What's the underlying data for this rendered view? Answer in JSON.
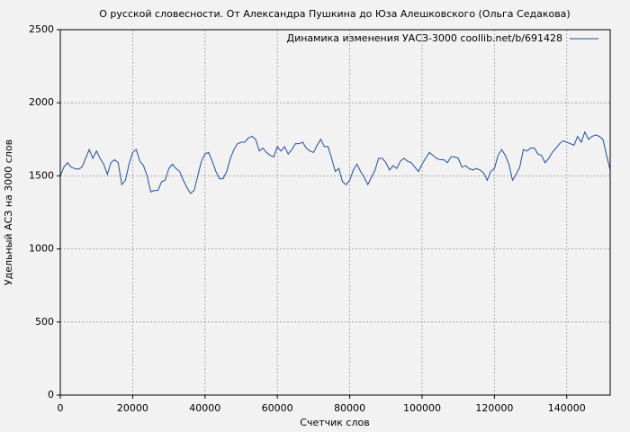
{
  "chart_data": {
    "type": "line",
    "title": "О русской словесности. От Александра Пушкина до Юза Алешковского (Ольга Седакова)",
    "xlabel": "Счетчик слов",
    "ylabel": "Удельный АСЗ на 3000 слов",
    "x": [
      0,
      1000,
      2000,
      3000,
      4000,
      5000,
      6000,
      7000,
      8000,
      9000,
      10000,
      11000,
      12000,
      13000,
      14000,
      15000,
      16000,
      17000,
      18000,
      19000,
      20000,
      21000,
      22000,
      23000,
      24000,
      25000,
      26000,
      27000,
      28000,
      29000,
      30000,
      31000,
      32000,
      33000,
      34000,
      35000,
      36000,
      37000,
      38000,
      39000,
      40000,
      41000,
      42000,
      43000,
      44000,
      45000,
      46000,
      47000,
      48000,
      49000,
      50000,
      51000,
      52000,
      53000,
      54000,
      55000,
      56000,
      57000,
      58000,
      59000,
      60000,
      61000,
      62000,
      63000,
      64000,
      65000,
      66000,
      67000,
      68000,
      69000,
      70000,
      71000,
      72000,
      73000,
      74000,
      75000,
      76000,
      77000,
      78000,
      79000,
      80000,
      81000,
      82000,
      83000,
      84000,
      85000,
      86000,
      87000,
      88000,
      89000,
      90000,
      91000,
      92000,
      93000,
      94000,
      95000,
      96000,
      97000,
      98000,
      99000,
      100000,
      101000,
      102000,
      103000,
      104000,
      105000,
      106000,
      107000,
      108000,
      109000,
      110000,
      111000,
      112000,
      113000,
      114000,
      115000,
      116000,
      117000,
      118000,
      119000,
      120000,
      121000,
      122000,
      123000,
      124000,
      125000,
      126000,
      127000,
      128000,
      129000,
      130000,
      131000,
      132000,
      133000,
      134000,
      135000,
      136000,
      137000,
      138000,
      139000,
      140000,
      141000,
      142000,
      143000,
      144000,
      145000,
      146000,
      147000,
      148000,
      149000,
      150000,
      151000,
      152000
    ],
    "series": [
      {
        "name": "Динамика изменения УАСЗ-3000  coollib.net/b/691428",
        "color": "#1f4e9c",
        "values": [
          1500,
          1560,
          1590,
          1560,
          1550,
          1545,
          1560,
          1620,
          1680,
          1620,
          1670,
          1620,
          1580,
          1510,
          1590,
          1610,
          1590,
          1440,
          1470,
          1580,
          1660,
          1680,
          1600,
          1570,
          1500,
          1390,
          1400,
          1400,
          1460,
          1470,
          1550,
          1580,
          1550,
          1530,
          1470,
          1420,
          1380,
          1400,
          1500,
          1600,
          1650,
          1660,
          1600,
          1530,
          1480,
          1480,
          1530,
          1620,
          1680,
          1720,
          1730,
          1730,
          1760,
          1770,
          1750,
          1670,
          1690,
          1660,
          1640,
          1630,
          1700,
          1670,
          1700,
          1650,
          1680,
          1720,
          1720,
          1730,
          1690,
          1670,
          1660,
          1710,
          1750,
          1700,
          1700,
          1620,
          1530,
          1550,
          1460,
          1440,
          1470,
          1540,
          1580,
          1530,
          1490,
          1440,
          1490,
          1540,
          1620,
          1620,
          1590,
          1540,
          1570,
          1550,
          1600,
          1620,
          1600,
          1590,
          1560,
          1530,
          1580,
          1620,
          1660,
          1640,
          1620,
          1610,
          1610,
          1590,
          1630,
          1630,
          1620,
          1560,
          1570,
          1550,
          1540,
          1550,
          1540,
          1520,
          1470,
          1530,
          1550,
          1640,
          1680,
          1640,
          1580,
          1470,
          1510,
          1560,
          1680,
          1670,
          1690,
          1690,
          1650,
          1640,
          1590,
          1620,
          1660,
          1690,
          1720,
          1740,
          1730,
          1720,
          1710,
          1770,
          1730,
          1800,
          1750,
          1770,
          1780,
          1770,
          1750,
          1640,
          1540
        ]
      }
    ],
    "xlim": [
      0,
      152000
    ],
    "ylim": [
      0,
      2500
    ],
    "xticks": [
      0,
      20000,
      40000,
      60000,
      80000,
      100000,
      120000,
      140000
    ],
    "yticks": [
      0,
      500,
      1000,
      1500,
      2000,
      2500
    ],
    "grid": true,
    "legend": "upper right"
  }
}
